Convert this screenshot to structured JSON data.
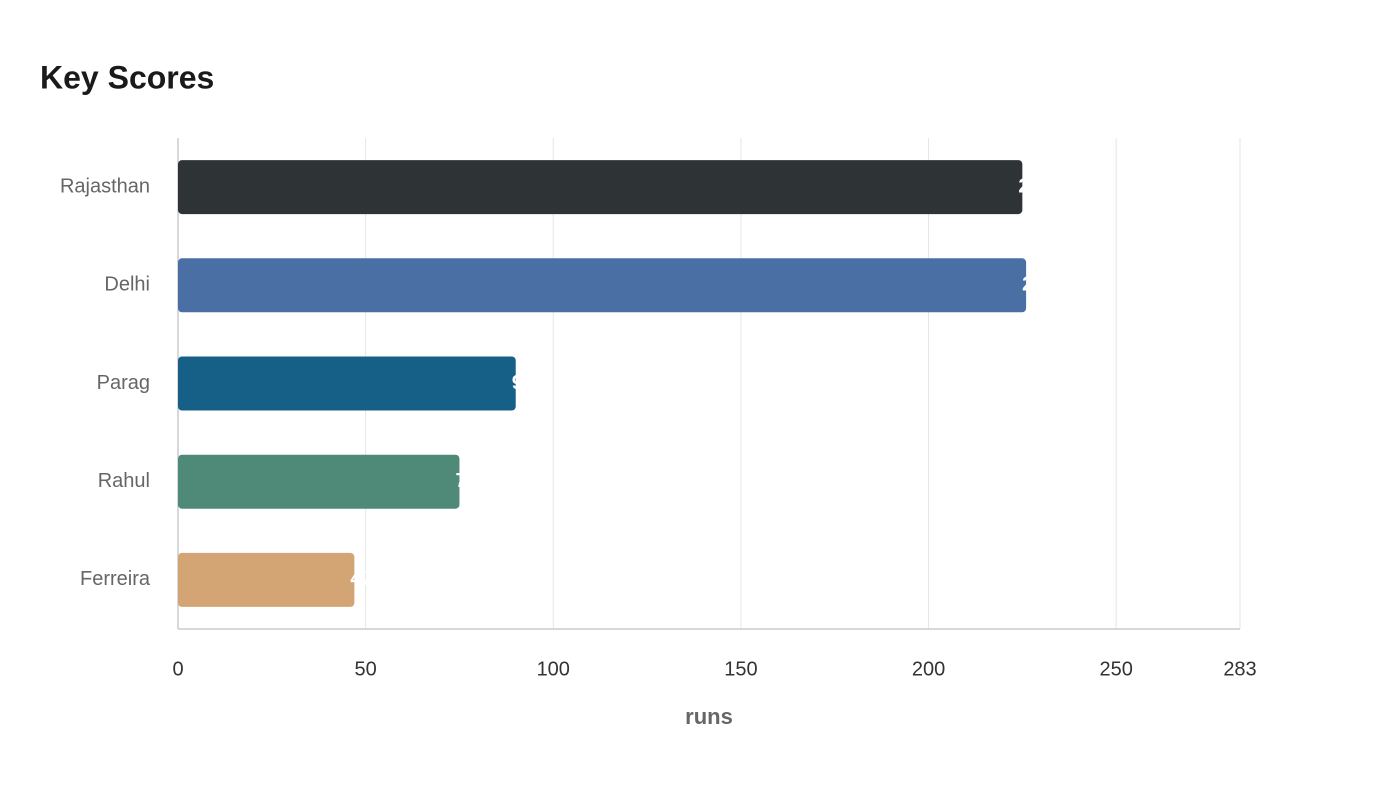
{
  "chart_data": {
    "type": "hbar",
    "title": "Key Scores",
    "x_label": "runs",
    "categories": [
      "Rajasthan",
      "Delhi",
      "Parag",
      "Rahul",
      "Ferreira"
    ],
    "values": [
      225,
      226,
      90,
      75,
      47
    ],
    "colors": [
      "#2e3436",
      "#4a6fa5",
      "#166088",
      "#4f8a78",
      "#d4a574"
    ],
    "xlim": [
      0,
      283
    ],
    "xticks": [
      0,
      50,
      100,
      150,
      200,
      250,
      283
    ],
    "grid": true
  }
}
